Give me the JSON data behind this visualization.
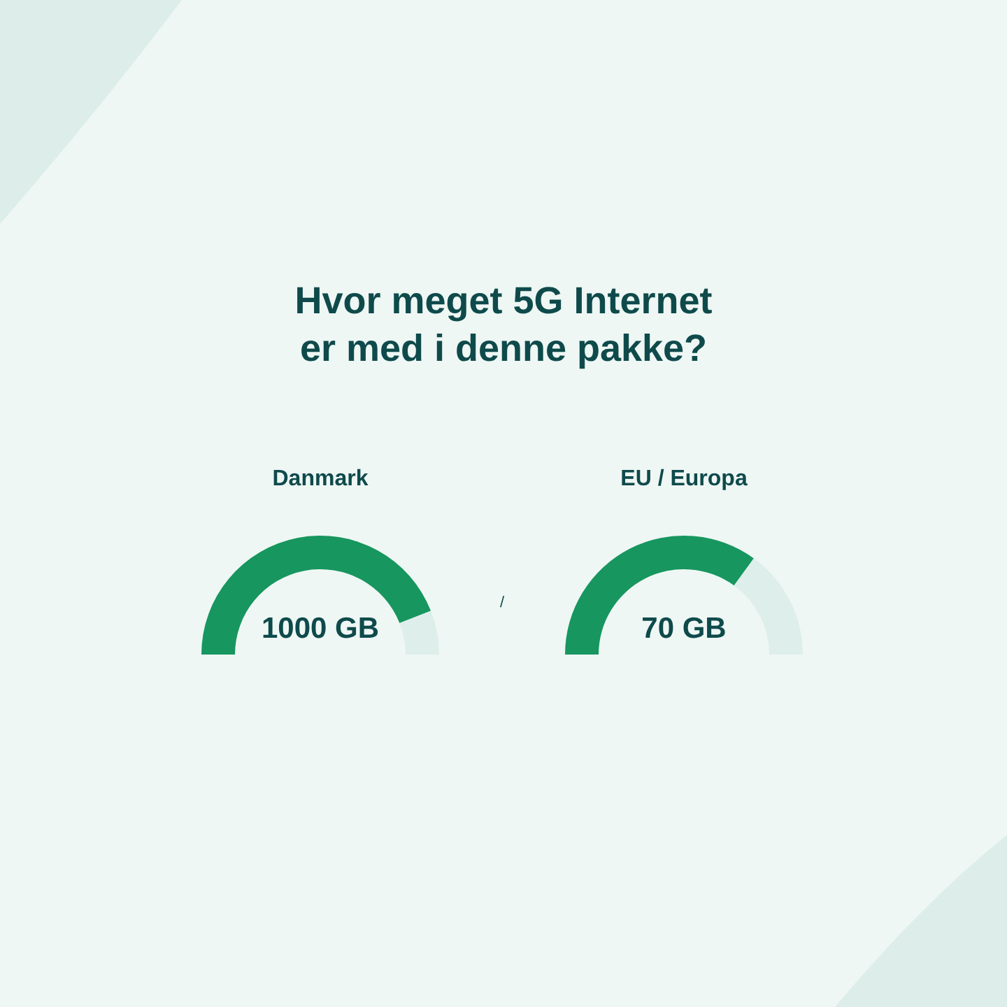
{
  "chart_data": [
    {
      "type": "donut",
      "title": "Hvor meget 5G Internet er med i denne pakke?",
      "subtitle": "Danmark",
      "categories": [
        null,
        null
      ],
      "values": [
        88,
        12
      ],
      "colors": [
        "#17965f",
        "#deeeea"
      ],
      "annotations": [
        "1000 GB",
        "/"
      ]
    },
    {
      "type": "donut",
      "subtitle": "EU / Europa",
      "categories": [
        null,
        null
      ],
      "values": [
        70,
        30
      ],
      "colors": [
        "#17965f",
        "#deeeea"
      ],
      "annotations": [
        "70 GB"
      ]
    }
  ]
}
